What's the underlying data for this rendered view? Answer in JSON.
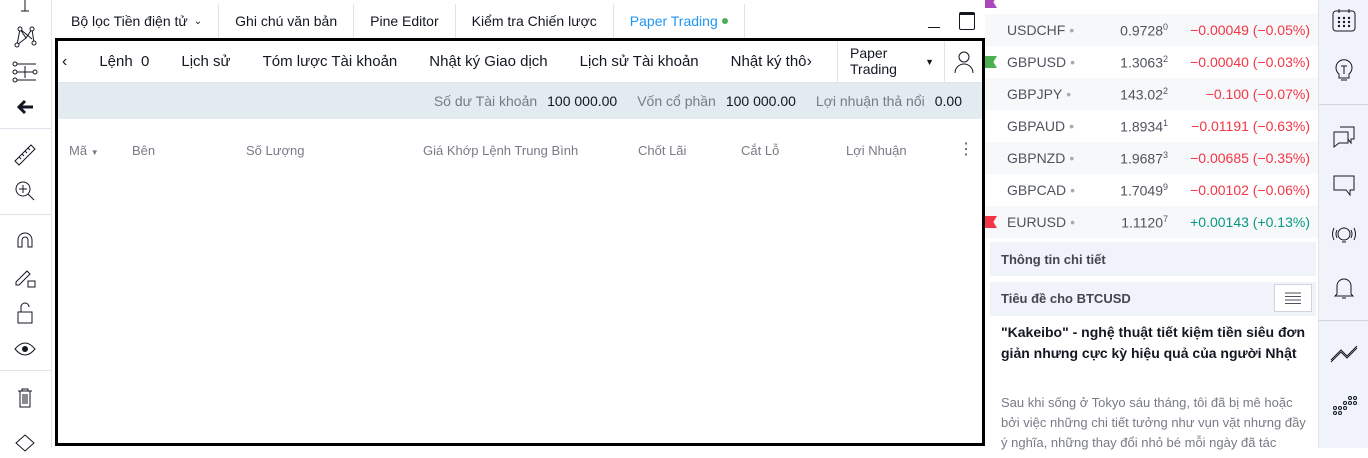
{
  "tabs": [
    {
      "label": "Bộ lọc Tiền điện tử"
    },
    {
      "label": "Ghi chú văn bản"
    },
    {
      "label": "Pine Editor"
    },
    {
      "label": "Kiểm tra Chiến lược"
    },
    {
      "label": "Paper Trading",
      "active": true
    }
  ],
  "panel": {
    "subtabs": [
      "Lệnh  0",
      "Lịch sử",
      "Tóm lược Tài khoản",
      "Nhật ký Giao dịch",
      "Lịch sử Tài khoản",
      "Nhật ký thông"
    ],
    "account_select": "Paper Trading",
    "balance": [
      {
        "label": "Số dư Tài khoản",
        "value": "100 000.00"
      },
      {
        "label": "Vốn cổ phần",
        "value": "100 000.00"
      },
      {
        "label": "Lợi nhuận thả nổi",
        "value": "0.00"
      }
    ],
    "columns": [
      "Mã",
      "Bên",
      "Số Lượng",
      "Giá Khớp Lệnh Trung Bình",
      "Chốt Lãi",
      "Cắt Lỗ",
      "Lợi Nhuận"
    ]
  },
  "watchlist": [
    {
      "symbol": "USDCHF",
      "price": "0.9728",
      "sup": "0",
      "change": "−0.00049 (−0.05%)",
      "up": false
    },
    {
      "symbol": "GBPUSD",
      "price": "1.3063",
      "sup": "2",
      "change": "−0.00040 (−0.03%)",
      "up": false,
      "flag": "#4caf50"
    },
    {
      "symbol": "GBPJPY",
      "price": "143.02",
      "sup": "2",
      "change": "−0.100 (−0.07%)",
      "up": false
    },
    {
      "symbol": "GBPAUD",
      "price": "1.8934",
      "sup": "1",
      "change": "−0.01191 (−0.63%)",
      "up": false
    },
    {
      "symbol": "GBPNZD",
      "price": "1.9687",
      "sup": "3",
      "change": "−0.00685 (−0.35%)",
      "up": false
    },
    {
      "symbol": "GBPCAD",
      "price": "1.7049",
      "sup": "9",
      "change": "−0.00102 (−0.06%)",
      "up": false
    },
    {
      "symbol": "EURUSD",
      "price": "1.1120",
      "sup": "7",
      "change": "+0.00143 (+0.13%)",
      "up": true,
      "flag": "#f23645"
    }
  ],
  "colors": {
    "down": "#f23645",
    "up": "#089981",
    "accent": "#2196f3"
  },
  "details": {
    "title": "Thông tin chi tiết",
    "headlines": "Tiêu đề cho BTCUSD",
    "news_title": "\"Kakeibo\" - nghệ thuật tiết kiệm tiền siêu đơn giản nhưng cực kỳ hiệu quả của người Nhật",
    "news_body": "Sau khi sống ở Tokyo sáu tháng, tôi đã bị mê hoặc bởi việc những chi tiết tưởng như vụn vặt nhưng đầy ý nghĩa, những thay đổi nhỏ bé mỗi ngày đã tác"
  }
}
